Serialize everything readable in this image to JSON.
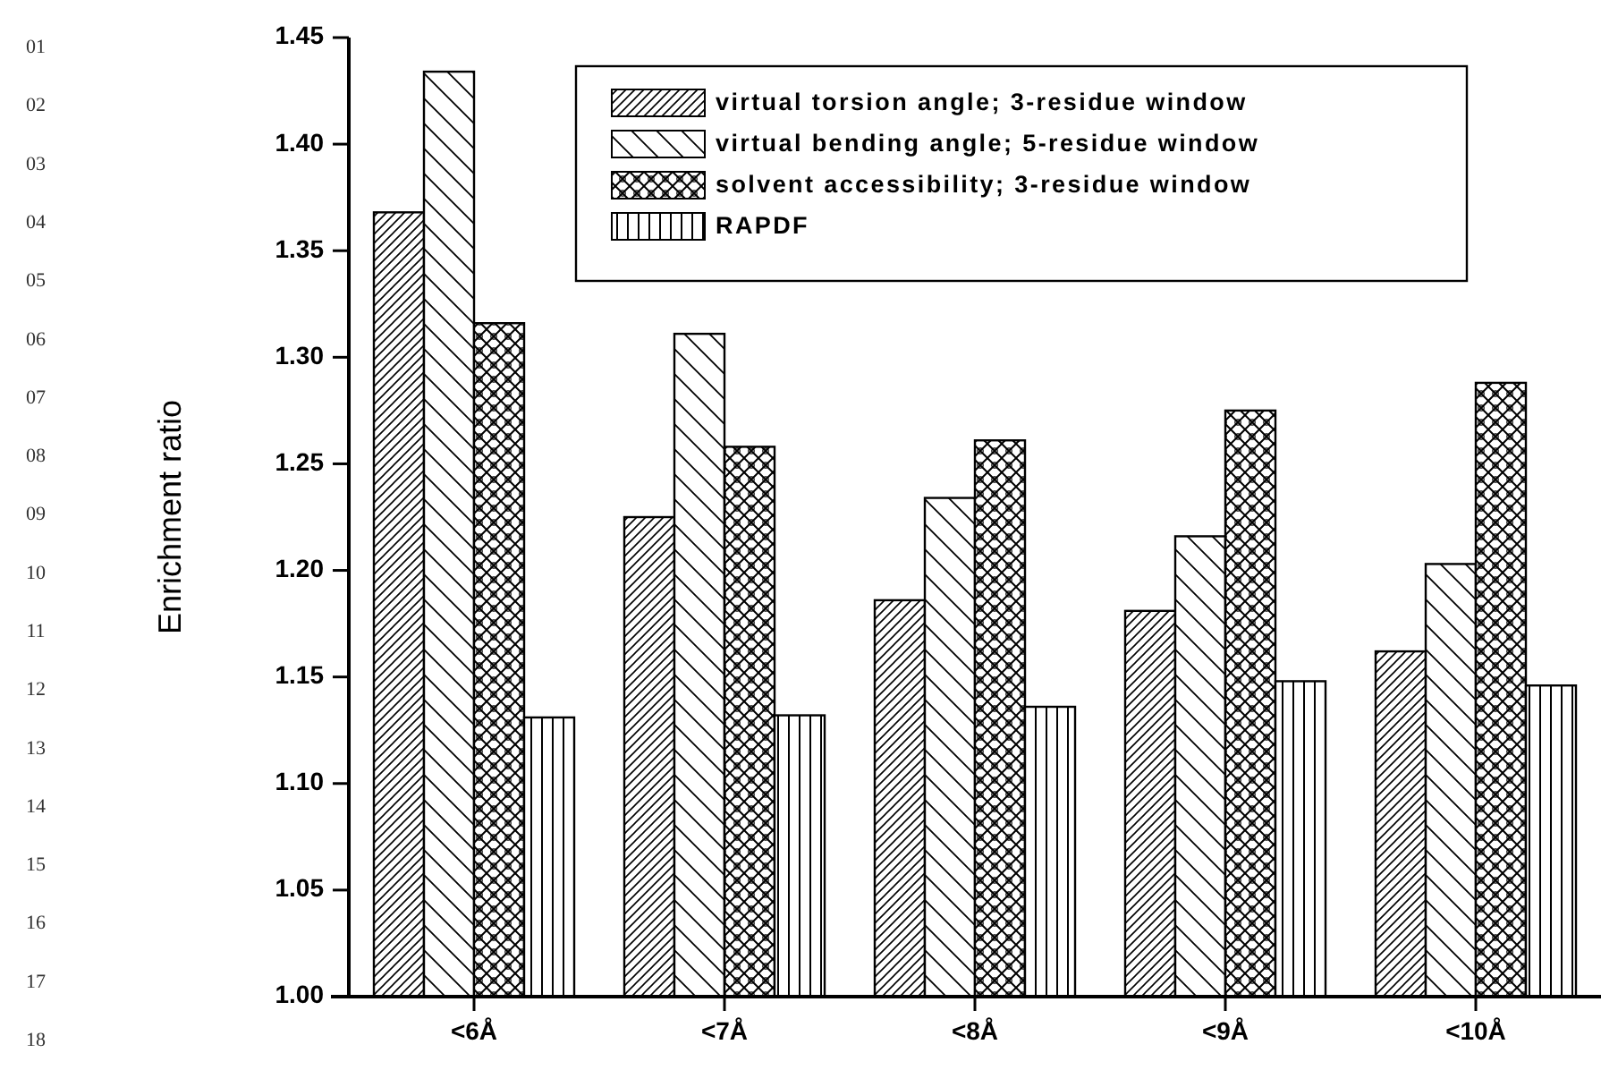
{
  "chart_data": {
    "type": "bar",
    "ylabel": "Enrichment ratio",
    "categories": [
      "<6Å",
      "<7Å",
      "<8Å",
      "<9Å",
      "<10Å"
    ],
    "series": [
      {
        "name": "virtual torsion angle; 3-residue window",
        "color": "#000000",
        "values": [
          1.368,
          1.225,
          1.186,
          1.181,
          1.162
        ]
      },
      {
        "name": "virtual bending angle; 5-residue window",
        "color": "#000000",
        "values": [
          1.434,
          1.311,
          1.234,
          1.216,
          1.203
        ]
      },
      {
        "name": "solvent accessibility; 3-residue window",
        "color": "#000000",
        "values": [
          1.316,
          1.258,
          1.261,
          1.275,
          1.288
        ]
      },
      {
        "name": "RAPDF",
        "color": "#000000",
        "values": [
          1.131,
          1.132,
          1.136,
          1.148,
          1.146
        ]
      }
    ],
    "ylim": [
      1.0,
      1.45
    ],
    "yticks": [
      {
        "value": 1,
        "label": "1.00"
      },
      {
        "value": 1.05,
        "label": "1.05"
      },
      {
        "value": 1.1,
        "label": "1.10"
      },
      {
        "value": 1.15,
        "label": "1.15"
      },
      {
        "value": 1.2,
        "label": "1.20"
      },
      {
        "value": 1.25,
        "label": "1.25"
      },
      {
        "value": 1.3,
        "label": "1.30"
      },
      {
        "value": 1.35,
        "label": "1.35"
      },
      {
        "value": 1.4,
        "label": "1.40"
      },
      {
        "value": 1.45,
        "label": "1.45"
      }
    ],
    "legend": "top right",
    "grid": false,
    "annotations": [
      "01",
      "02",
      "03",
      "04",
      "05",
      "06",
      "07",
      "08",
      "09",
      "10",
      "11",
      "12",
      "13",
      "14",
      "15",
      "16",
      "17",
      "18"
    ]
  }
}
